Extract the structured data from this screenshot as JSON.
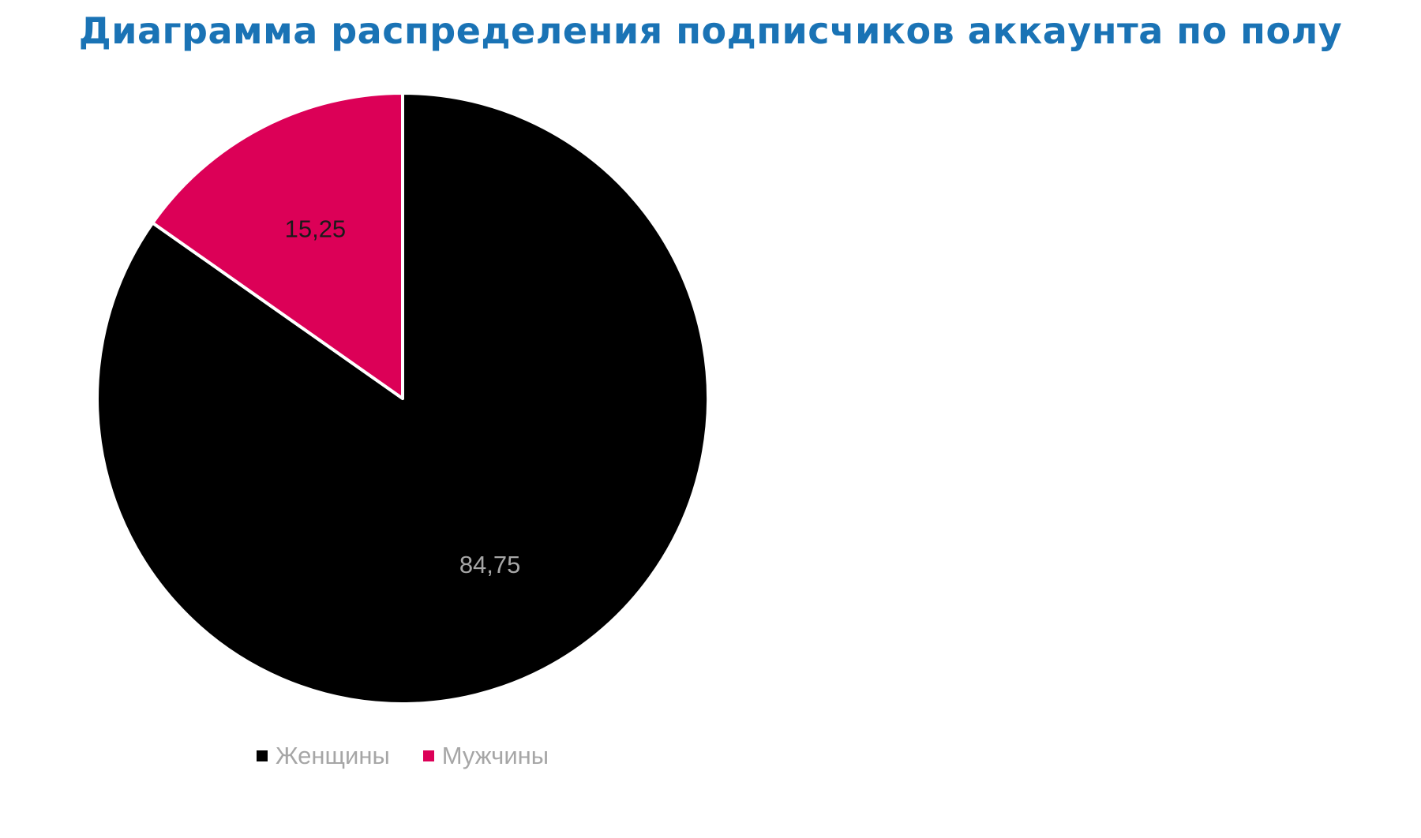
{
  "chart_data": {
    "type": "pie",
    "title": "Диаграмма распределения подписчиков аккаунта по полу",
    "categories": [
      "Женщины",
      "Мужчины"
    ],
    "values": [
      84.75,
      15.25
    ],
    "value_labels": [
      "84,75",
      "15,25"
    ],
    "colors": [
      "#000000",
      "#dc0057"
    ],
    "label_colors": [
      "#a6a6a6",
      "#1a1a1a"
    ],
    "legend_position": "bottom"
  }
}
